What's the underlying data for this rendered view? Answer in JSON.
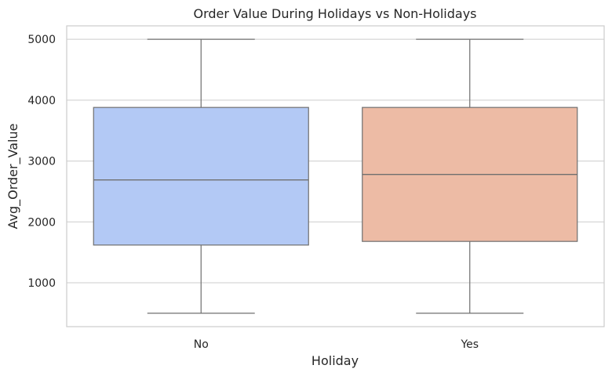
{
  "chart_data": {
    "type": "box",
    "title": "Order Value During Holidays vs Non-Holidays",
    "xlabel": "Holiday",
    "ylabel": "Avg_Order_Value",
    "categories": [
      "No",
      "Yes"
    ],
    "boxes": [
      {
        "category": "No",
        "min": 500,
        "q1": 1620,
        "median": 2690,
        "q3": 3880,
        "max": 5000,
        "color": "#b3c9f5"
      },
      {
        "category": "Yes",
        "min": 500,
        "q1": 1680,
        "median": 2780,
        "q3": 3880,
        "max": 5000,
        "color": "#edbba5"
      }
    ],
    "ylim": [
      280,
      5220
    ],
    "yticks": [
      1000,
      2000,
      3000,
      4000,
      5000
    ],
    "grid": true,
    "legend": "none"
  },
  "colors": {
    "box_edge": "#6f6f6f",
    "grid": "#cccccc",
    "text": "#262626"
  }
}
